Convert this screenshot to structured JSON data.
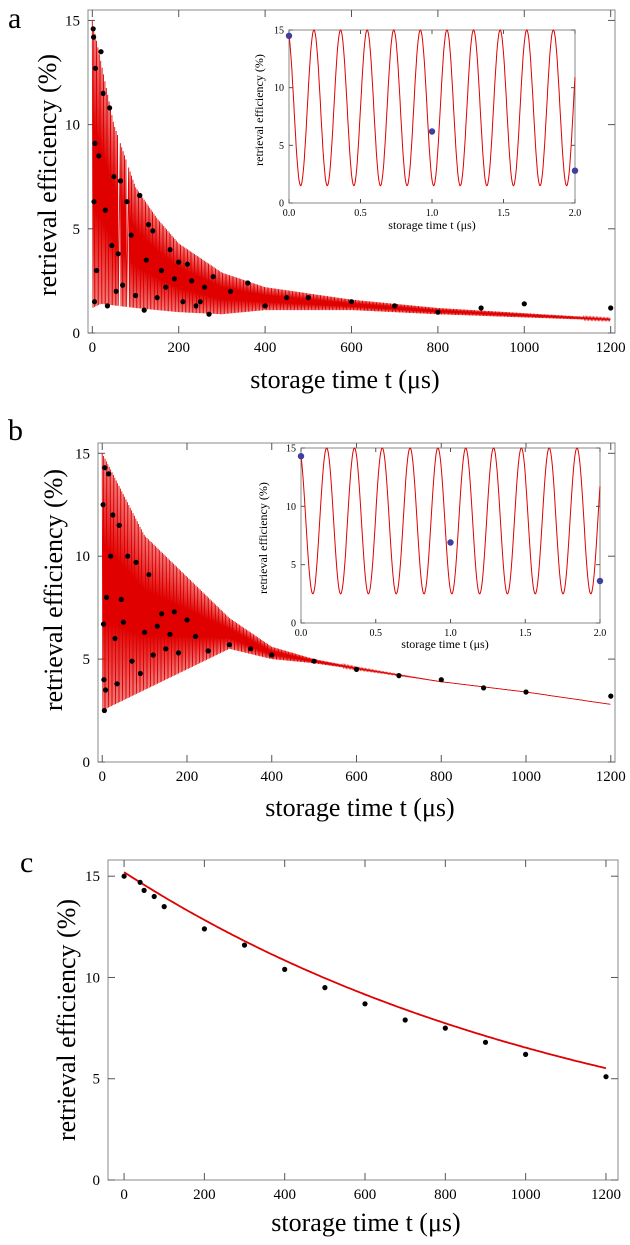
{
  "figure": {
    "panels": [
      {
        "letter": "a",
        "xlabel": "storage time t (μs)",
        "ylabel": "retrieval efficiency (%)",
        "inset": {
          "xlabel": "storage time t (μs)",
          "ylabel": "retrieval efficiency (%)"
        }
      },
      {
        "letter": "b",
        "xlabel": "storage time t (μs)",
        "ylabel": "retrieval efficiency (%)",
        "inset": {
          "xlabel": "storage time t (μs)",
          "ylabel": "retrieval efficiency (%)"
        }
      },
      {
        "letter": "c",
        "xlabel": "storage time t (μs)",
        "ylabel": "retrieval efficiency (%)"
      }
    ]
  },
  "colors": {
    "fit": "#e00000",
    "data_points": "#000000",
    "inset_points": "#3f3f9f",
    "frame": "#888888"
  },
  "chart_data": [
    {
      "type": "scatter",
      "panel": "a",
      "xlabel": "storage time t (μs)",
      "ylabel": "retrieval efficiency (%)",
      "xlim": [
        -10,
        1210
      ],
      "ylim": [
        0,
        15.5
      ],
      "xticks": [
        0,
        200,
        400,
        600,
        800,
        1000,
        1200
      ],
      "yticks": [
        0,
        5,
        10,
        15
      ],
      "fit": {
        "description": "rapidly oscillating envelope",
        "upper": [
          [
            0,
            15
          ],
          [
            20,
            13
          ],
          [
            50,
            10
          ],
          [
            100,
            7
          ],
          [
            150,
            5.5
          ],
          [
            200,
            4.3
          ],
          [
            300,
            2.9
          ],
          [
            400,
            2.2
          ],
          [
            600,
            1.6
          ],
          [
            800,
            1.2
          ],
          [
            1000,
            0.95
          ],
          [
            1200,
            0.7
          ]
        ],
        "lower": [
          [
            0,
            1.2
          ],
          [
            20,
            1.4
          ],
          [
            100,
            1.2
          ],
          [
            200,
            1.0
          ],
          [
            300,
            0.9
          ],
          [
            400,
            1.1
          ],
          [
            600,
            1.1
          ],
          [
            800,
            0.9
          ],
          [
            1000,
            0.75
          ],
          [
            1200,
            0.6
          ]
        ],
        "gaps": [
          60,
          80
        ]
      },
      "data": [
        [
          2,
          14.6
        ],
        [
          3,
          14.2
        ],
        [
          4,
          6.3
        ],
        [
          5,
          1.5
        ],
        [
          6,
          9.1
        ],
        [
          7,
          12.7
        ],
        [
          10,
          3
        ],
        [
          15,
          8.5
        ],
        [
          20,
          13.5
        ],
        [
          25,
          11.5
        ],
        [
          30,
          5.9
        ],
        [
          35,
          1.3
        ],
        [
          40,
          10.8
        ],
        [
          45,
          4.2
        ],
        [
          50,
          7.5
        ],
        [
          55,
          2
        ],
        [
          60,
          3.8
        ],
        [
          65,
          7.3
        ],
        [
          70,
          2.3
        ],
        [
          80,
          6.3
        ],
        [
          90,
          4.7
        ],
        [
          100,
          1.8
        ],
        [
          110,
          6.6
        ],
        [
          120,
          1.1
        ],
        [
          125,
          3.5
        ],
        [
          130,
          5.2
        ],
        [
          140,
          4.9
        ],
        [
          150,
          1.7
        ],
        [
          160,
          3
        ],
        [
          170,
          2.2
        ],
        [
          180,
          4
        ],
        [
          190,
          2.6
        ],
        [
          200,
          3.4
        ],
        [
          210,
          1.5
        ],
        [
          220,
          3.3
        ],
        [
          230,
          2.5
        ],
        [
          240,
          1.3
        ],
        [
          250,
          1.5
        ],
        [
          260,
          2.2
        ],
        [
          270,
          0.9
        ],
        [
          280,
          2.7
        ],
        [
          320,
          2
        ],
        [
          360,
          2.4
        ],
        [
          400,
          1.3
        ],
        [
          450,
          1.7
        ],
        [
          500,
          1.7
        ],
        [
          600,
          1.5
        ],
        [
          700,
          1.3
        ],
        [
          800,
          1
        ],
        [
          900,
          1.2
        ],
        [
          1000,
          1.4
        ],
        [
          1200,
          1.2
        ]
      ]
    },
    {
      "type": "line",
      "panel": "a-inset",
      "xlabel": "storage time t (μs)",
      "ylabel": "retrieval efficiency (%)",
      "xlim": [
        0,
        2.0
      ],
      "ylim": [
        0,
        15
      ],
      "xticks": [
        0.0,
        0.5,
        1.0,
        1.5,
        2.0
      ],
      "yticks": [
        0,
        5,
        10,
        15
      ],
      "fit": {
        "function": "oscillation",
        "min": 1.5,
        "max": 15,
        "period": 0.186,
        "phase_at_0": 14.5
      },
      "points": [
        [
          0.0,
          14.5
        ],
        [
          1.0,
          6.2
        ],
        [
          2.0,
          2.8
        ]
      ]
    },
    {
      "type": "scatter",
      "panel": "b",
      "xlabel": "storage time t (μs)",
      "ylabel": "retrieval efficiency (%)",
      "xlim": [
        -10,
        1210
      ],
      "ylim": [
        0,
        15.5
      ],
      "xticks": [
        0,
        200,
        400,
        600,
        800,
        1000,
        1200
      ],
      "yticks": [
        0,
        5,
        10,
        15
      ],
      "fit": {
        "description": "rapidly oscillating envelope converging to decay",
        "upper": [
          [
            0,
            15
          ],
          [
            50,
            13
          ],
          [
            100,
            11
          ],
          [
            200,
            9
          ],
          [
            300,
            7
          ],
          [
            400,
            5.6
          ],
          [
            500,
            5
          ],
          [
            600,
            4.6
          ],
          [
            800,
            3.9
          ],
          [
            1000,
            3.4
          ],
          [
            1200,
            2.8
          ]
        ],
        "lower": [
          [
            0,
            2.5
          ],
          [
            100,
            3.5
          ],
          [
            200,
            4.5
          ],
          [
            300,
            5.5
          ],
          [
            400,
            5.0
          ],
          [
            500,
            4.8
          ],
          [
            600,
            4.5
          ],
          [
            800,
            3.9
          ],
          [
            1000,
            3.4
          ],
          [
            1200,
            2.8
          ]
        ]
      },
      "data": [
        [
          2,
          12.5
        ],
        [
          3,
          6.7
        ],
        [
          4,
          4
        ],
        [
          5,
          2.5
        ],
        [
          6,
          14.3
        ],
        [
          8,
          3.5
        ],
        [
          10,
          8
        ],
        [
          15,
          14
        ],
        [
          20,
          10
        ],
        [
          25,
          12
        ],
        [
          30,
          6
        ],
        [
          35,
          3.8
        ],
        [
          40,
          11.5
        ],
        [
          45,
          7.9
        ],
        [
          50,
          6.8
        ],
        [
          60,
          10
        ],
        [
          70,
          4.9
        ],
        [
          80,
          9.7
        ],
        [
          90,
          4.3
        ],
        [
          100,
          6.3
        ],
        [
          110,
          9.1
        ],
        [
          120,
          5.2
        ],
        [
          130,
          6.6
        ],
        [
          140,
          7.2
        ],
        [
          150,
          5.5
        ],
        [
          160,
          6.2
        ],
        [
          170,
          7.3
        ],
        [
          180,
          5.3
        ],
        [
          200,
          6.9
        ],
        [
          220,
          6.1
        ],
        [
          250,
          5.4
        ],
        [
          300,
          5.7
        ],
        [
          350,
          5.5
        ],
        [
          400,
          5.2
        ],
        [
          500,
          4.9
        ],
        [
          600,
          4.5
        ],
        [
          700,
          4.2
        ],
        [
          800,
          4
        ],
        [
          900,
          3.6
        ],
        [
          1000,
          3.4
        ],
        [
          1200,
          3.2
        ]
      ]
    },
    {
      "type": "line",
      "panel": "b-inset",
      "xlabel": "storage time t (μs)",
      "ylabel": "retrieval efficiency (%)",
      "xlim": [
        0,
        2.0
      ],
      "ylim": [
        0,
        15
      ],
      "xticks": [
        0.0,
        0.5,
        1.0,
        1.5,
        2.0
      ],
      "yticks": [
        0,
        5,
        10,
        15
      ],
      "fit": {
        "function": "oscillation",
        "min": 2.5,
        "max": 15,
        "period": 0.186,
        "phase_at_0": 14.3
      },
      "points": [
        [
          0.0,
          14.3
        ],
        [
          1.0,
          6.9
        ],
        [
          2.0,
          3.6
        ]
      ]
    },
    {
      "type": "scatter",
      "panel": "c",
      "xlabel": "storage time t (μs)",
      "ylabel": "retrieval efficiency (%)",
      "xlim": [
        -40,
        1230
      ],
      "ylim": [
        0,
        15.8
      ],
      "xticks": [
        0,
        200,
        400,
        600,
        800,
        1000,
        1200
      ],
      "yticks": [
        0,
        5,
        10,
        15
      ],
      "fit": {
        "function": "exponential decay",
        "y0": 15.2,
        "tau": 1185
      },
      "data": [
        [
          0,
          15
        ],
        [
          40,
          14.7
        ],
        [
          50,
          14.3
        ],
        [
          75,
          14
        ],
        [
          100,
          13.5
        ],
        [
          200,
          12.4
        ],
        [
          300,
          11.6
        ],
        [
          400,
          10.4
        ],
        [
          500,
          9.5
        ],
        [
          600,
          8.7
        ],
        [
          700,
          7.9
        ],
        [
          800,
          7.5
        ],
        [
          900,
          6.8
        ],
        [
          1000,
          6.2
        ],
        [
          1200,
          5.1
        ]
      ]
    }
  ]
}
